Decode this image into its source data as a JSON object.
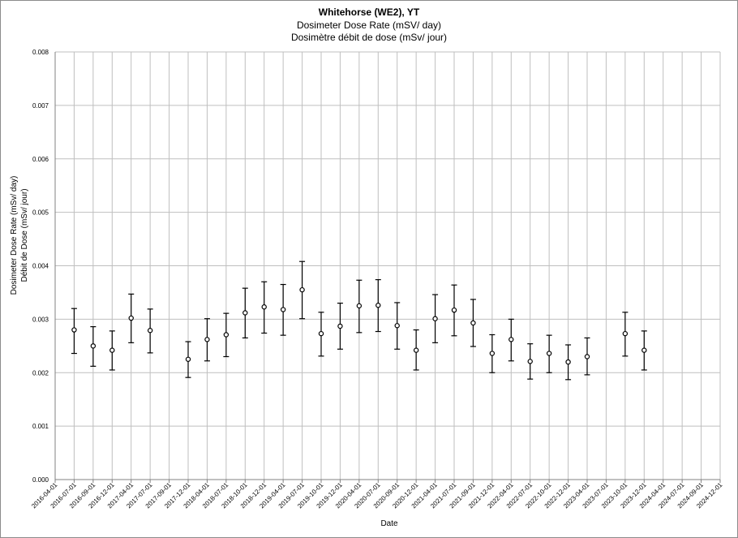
{
  "chart_data": {
    "type": "scatter",
    "title": "Whitehorse (WE2), YT",
    "subtitle_en": "Dosimeter Dose Rate (mSV/ day)",
    "subtitle_fr": "Dosimètre débit de dose (mSv/ jour)",
    "xlabel": "Date",
    "ylabel_en": "Dosimeter Dose Rate (mSv/ day)",
    "ylabel_fr": "Débit de Dose (mSv/ jour)",
    "ylim": [
      0,
      0.008
    ],
    "y_ticks": [
      "0.000",
      "0.001",
      "0.002",
      "0.003",
      "0.004",
      "0.005",
      "0.006",
      "0.007",
      "0.008"
    ],
    "x_ticks": [
      "2016-04-01",
      "2016-07-01",
      "2016-09-01",
      "2016-12-01",
      "2017-04-01",
      "2017-07-01",
      "2017-09-01",
      "2017-12-01",
      "2018-04-01",
      "2018-07-01",
      "2018-10-01",
      "2018-12-01",
      "2019-04-01",
      "2019-07-01",
      "2019-10-01",
      "2019-12-01",
      "2020-04-01",
      "2020-07-01",
      "2020-09-01",
      "2020-12-01",
      "2021-04-01",
      "2021-07-01",
      "2021-09-01",
      "2021-12-01",
      "2022-04-01",
      "2022-07-01",
      "2022-10-01",
      "2022-12-01",
      "2023-04-01",
      "2023-07-01",
      "2023-10-01",
      "2023-12-01",
      "2024-04-01",
      "2024-07-01",
      "2024-09-01",
      "2024-12-01"
    ],
    "grid": true,
    "marker": "open-circle-with-error-bars",
    "colors": {
      "grid": "#bfbfbf",
      "axis": "#808080",
      "marker": "#000000"
    },
    "points": [
      {
        "x": "2016-07-01",
        "y": 0.0028,
        "low": 0.00236,
        "high": 0.0032
      },
      {
        "x": "2016-09-01",
        "y": 0.0025,
        "low": 0.00212,
        "high": 0.00286
      },
      {
        "x": "2016-12-01",
        "y": 0.00242,
        "low": 0.00205,
        "high": 0.00278
      },
      {
        "x": "2017-04-01",
        "y": 0.00302,
        "low": 0.00256,
        "high": 0.00347
      },
      {
        "x": "2017-07-01",
        "y": 0.00279,
        "low": 0.00237,
        "high": 0.00319
      },
      {
        "x": "2017-12-01",
        "y": 0.00225,
        "low": 0.00191,
        "high": 0.00258
      },
      {
        "x": "2018-04-01",
        "y": 0.00262,
        "low": 0.00222,
        "high": 0.00301
      },
      {
        "x": "2018-07-01",
        "y": 0.00271,
        "low": 0.0023,
        "high": 0.00311
      },
      {
        "x": "2018-10-01",
        "y": 0.00312,
        "low": 0.00265,
        "high": 0.00358
      },
      {
        "x": "2018-12-01",
        "y": 0.00323,
        "low": 0.00274,
        "high": 0.0037
      },
      {
        "x": "2019-04-01",
        "y": 0.00318,
        "low": 0.0027,
        "high": 0.00365
      },
      {
        "x": "2019-07-01",
        "y": 0.00355,
        "low": 0.00301,
        "high": 0.00408
      },
      {
        "x": "2019-10-01",
        "y": 0.00273,
        "low": 0.00231,
        "high": 0.00313
      },
      {
        "x": "2019-12-01",
        "y": 0.00287,
        "low": 0.00244,
        "high": 0.0033
      },
      {
        "x": "2020-04-01",
        "y": 0.00325,
        "low": 0.00275,
        "high": 0.00373
      },
      {
        "x": "2020-07-01",
        "y": 0.00326,
        "low": 0.00277,
        "high": 0.00374
      },
      {
        "x": "2020-09-01",
        "y": 0.00288,
        "low": 0.00244,
        "high": 0.00331
      },
      {
        "x": "2020-12-01",
        "y": 0.00242,
        "low": 0.00205,
        "high": 0.0028
      },
      {
        "x": "2021-04-01",
        "y": 0.00301,
        "low": 0.00256,
        "high": 0.00346
      },
      {
        "x": "2021-07-01",
        "y": 0.00317,
        "low": 0.00269,
        "high": 0.00364
      },
      {
        "x": "2021-09-01",
        "y": 0.00293,
        "low": 0.00249,
        "high": 0.00337
      },
      {
        "x": "2021-12-01",
        "y": 0.00236,
        "low": 0.002,
        "high": 0.00271
      },
      {
        "x": "2022-04-01",
        "y": 0.00262,
        "low": 0.00222,
        "high": 0.003
      },
      {
        "x": "2022-07-01",
        "y": 0.00221,
        "low": 0.00188,
        "high": 0.00254
      },
      {
        "x": "2022-10-01",
        "y": 0.00236,
        "low": 0.002,
        "high": 0.0027
      },
      {
        "x": "2022-12-01",
        "y": 0.0022,
        "low": 0.00187,
        "high": 0.00252
      },
      {
        "x": "2023-04-01",
        "y": 0.0023,
        "low": 0.00196,
        "high": 0.00265
      },
      {
        "x": "2023-10-01",
        "y": 0.00273,
        "low": 0.00231,
        "high": 0.00313
      },
      {
        "x": "2023-12-01",
        "y": 0.00242,
        "low": 0.00205,
        "high": 0.00278
      }
    ]
  }
}
